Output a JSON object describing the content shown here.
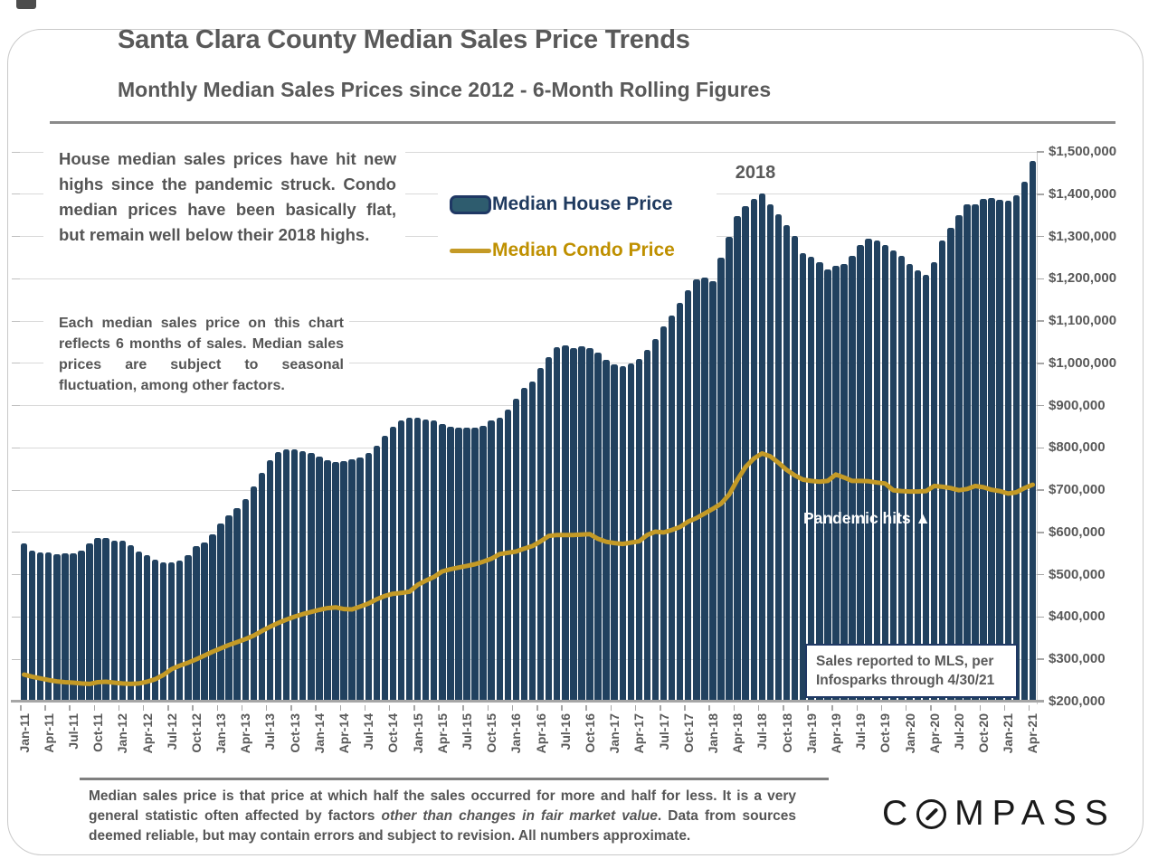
{
  "title": "Santa Clara County Median Sales Price Trends",
  "subtitle": "Monthly Median Sales Prices since 2012 - 6-Month Rolling Figures",
  "notes": {
    "para1": "House median sales prices have hit new highs since the pandemic struck. Condo median prices have been basically flat, but remain well below their 2018 highs.",
    "para2": "Each median sales price on this chart reflects 6 months of sales. Median sales prices are subject to seasonal fluctuation, among other factors."
  },
  "legend": {
    "house_label": "Median House Price",
    "condo_label": "Median Condo Price"
  },
  "annotations": {
    "year_label": "2018",
    "pandemic_label": "Pandemic hits",
    "pandemic_arrow": "▲"
  },
  "source_box": {
    "line1": "Sales reported to MLS, per",
    "line2": "Infosparks through 4/30/21"
  },
  "footer": {
    "part1": "Median sales price is that price at which half the sales occurred for more and half for less. It is a very general statistic often affected by factors ",
    "italic": "other than changes in fair market value",
    "part3": ". Data from sources deemed reliable, but may contain errors and subject to revision. All numbers approximate."
  },
  "logo": {
    "before_o": "C",
    "after_o": "MPASS"
  },
  "colors": {
    "bar": "#21415f",
    "condo_line": "#c49a26",
    "legend_house_text": "#1f3a5f",
    "legend_condo_text": "#bf9000",
    "text_gray": "#595959",
    "box_border_navy": "#1f3864",
    "gridline": "#d9d9d9"
  },
  "chart_data": {
    "type": "bar",
    "title": "Santa Clara County Median Sales Price Trends",
    "x_start": "Jan-11",
    "x_end": "Apr-21",
    "x_interval": "monthly",
    "x_tick_labels": [
      "Jan-11",
      "Apr-11",
      "Jul-11",
      "Oct-11",
      "Jan-12",
      "Apr-12",
      "Jul-12",
      "Oct-12",
      "Jan-13",
      "Apr-13",
      "Jul-13",
      "Oct-13",
      "Jan-14",
      "Apr-14",
      "Jul-14",
      "Oct-14",
      "Jan-15",
      "Apr-15",
      "Jul-15",
      "Oct-15",
      "Jan-16",
      "Apr-16",
      "Jul-16",
      "Oct-16",
      "Jan-17",
      "Apr-17",
      "Jul-17",
      "Oct-17",
      "Jan-18",
      "Apr-18",
      "Jul-18",
      "Oct-18",
      "Jan-19",
      "Apr-19",
      "Jul-19",
      "Oct-19",
      "Jan-20",
      "Apr-20",
      "Jul-20",
      "Oct-20",
      "Jan-21",
      "Apr-21"
    ],
    "y_min": 200000,
    "y_max": 1500000,
    "y_step": 100000,
    "y_tick_labels": [
      "$200,000",
      "$300,000",
      "$400,000",
      "$500,000",
      "$600,000",
      "$700,000",
      "$800,000",
      "$900,000",
      "$1,000,000",
      "$1,100,000",
      "$1,200,000",
      "$1,300,000",
      "$1,400,000",
      "$1,500,000"
    ],
    "grid": true,
    "legend_position": "upper-left",
    "series": [
      {
        "name": "Median House Price",
        "type": "bar",
        "color": "#21415f",
        "values": [
          575000,
          558000,
          552000,
          552000,
          548000,
          550000,
          550000,
          558000,
          575000,
          587000,
          587000,
          581000,
          581000,
          571000,
          555000,
          547000,
          536000,
          530000,
          530000,
          534000,
          547000,
          568000,
          577000,
          596000,
          622000,
          640000,
          658000,
          678000,
          708000,
          742000,
          770000,
          790000,
          797000,
          797000,
          793000,
          789000,
          780000,
          770000,
          767000,
          768000,
          773000,
          778000,
          789000,
          806000,
          828000,
          849000,
          865000,
          872000,
          871000,
          868000,
          866000,
          857000,
          849000,
          847000,
          847000,
          848000,
          852000,
          864000,
          872000,
          890000,
          917000,
          943000,
          958000,
          988000,
          1015000,
          1038000,
          1043000,
          1037000,
          1040000,
          1035000,
          1025000,
          1008000,
          998000,
          993000,
          1000000,
          1010000,
          1032000,
          1058000,
          1088000,
          1113000,
          1142000,
          1172000,
          1198000,
          1202000,
          1194000,
          1249000,
          1299000,
          1348000,
          1371000,
          1389000,
          1402000,
          1376000,
          1352000,
          1326000,
          1301000,
          1260000,
          1253000,
          1240000,
          1223000,
          1230000,
          1234000,
          1255000,
          1279000,
          1294000,
          1290000,
          1279000,
          1268000,
          1255000,
          1234000,
          1220000,
          1210000,
          1240000,
          1290000,
          1320000,
          1350000,
          1375000,
          1377000,
          1388000,
          1390000,
          1386000,
          1384000,
          1397000,
          1429000,
          1478000
        ]
      },
      {
        "name": "Median Condo Price",
        "type": "line",
        "color": "#c49a26",
        "values": [
          264000,
          259000,
          255000,
          251000,
          248000,
          246000,
          245000,
          243000,
          242000,
          246000,
          247000,
          245000,
          243000,
          242000,
          243000,
          247000,
          253000,
          263000,
          277000,
          285000,
          292000,
          300000,
          309000,
          318000,
          326000,
          334000,
          341000,
          348000,
          356000,
          367000,
          377000,
          386000,
          394000,
          401000,
          407000,
          412000,
          417000,
          421000,
          423000,
          419000,
          418000,
          425000,
          432000,
          442000,
          450000,
          455000,
          457000,
          460000,
          476000,
          486000,
          495000,
          508000,
          513000,
          517000,
          521000,
          525000,
          531000,
          538000,
          549000,
          552000,
          555000,
          562000,
          568000,
          579000,
          592000,
          594000,
          594000,
          594000,
          595000,
          596000,
          585000,
          578000,
          575000,
          573000,
          576000,
          579000,
          594000,
          602000,
          600000,
          606000,
          613000,
          626000,
          634000,
          645000,
          656000,
          668000,
          690000,
          725000,
          755000,
          775000,
          787000,
          780000,
          765000,
          748000,
          735000,
          725000,
          722000,
          720000,
          722000,
          737000,
          730000,
          722000,
          722000,
          721000,
          718000,
          716000,
          700000,
          698000,
          697000,
          697000,
          698000,
          710000,
          708000,
          705000,
          700000,
          703000,
          710000,
          707000,
          701000,
          698000,
          692000,
          695000,
          705000,
          713000
        ]
      }
    ]
  }
}
